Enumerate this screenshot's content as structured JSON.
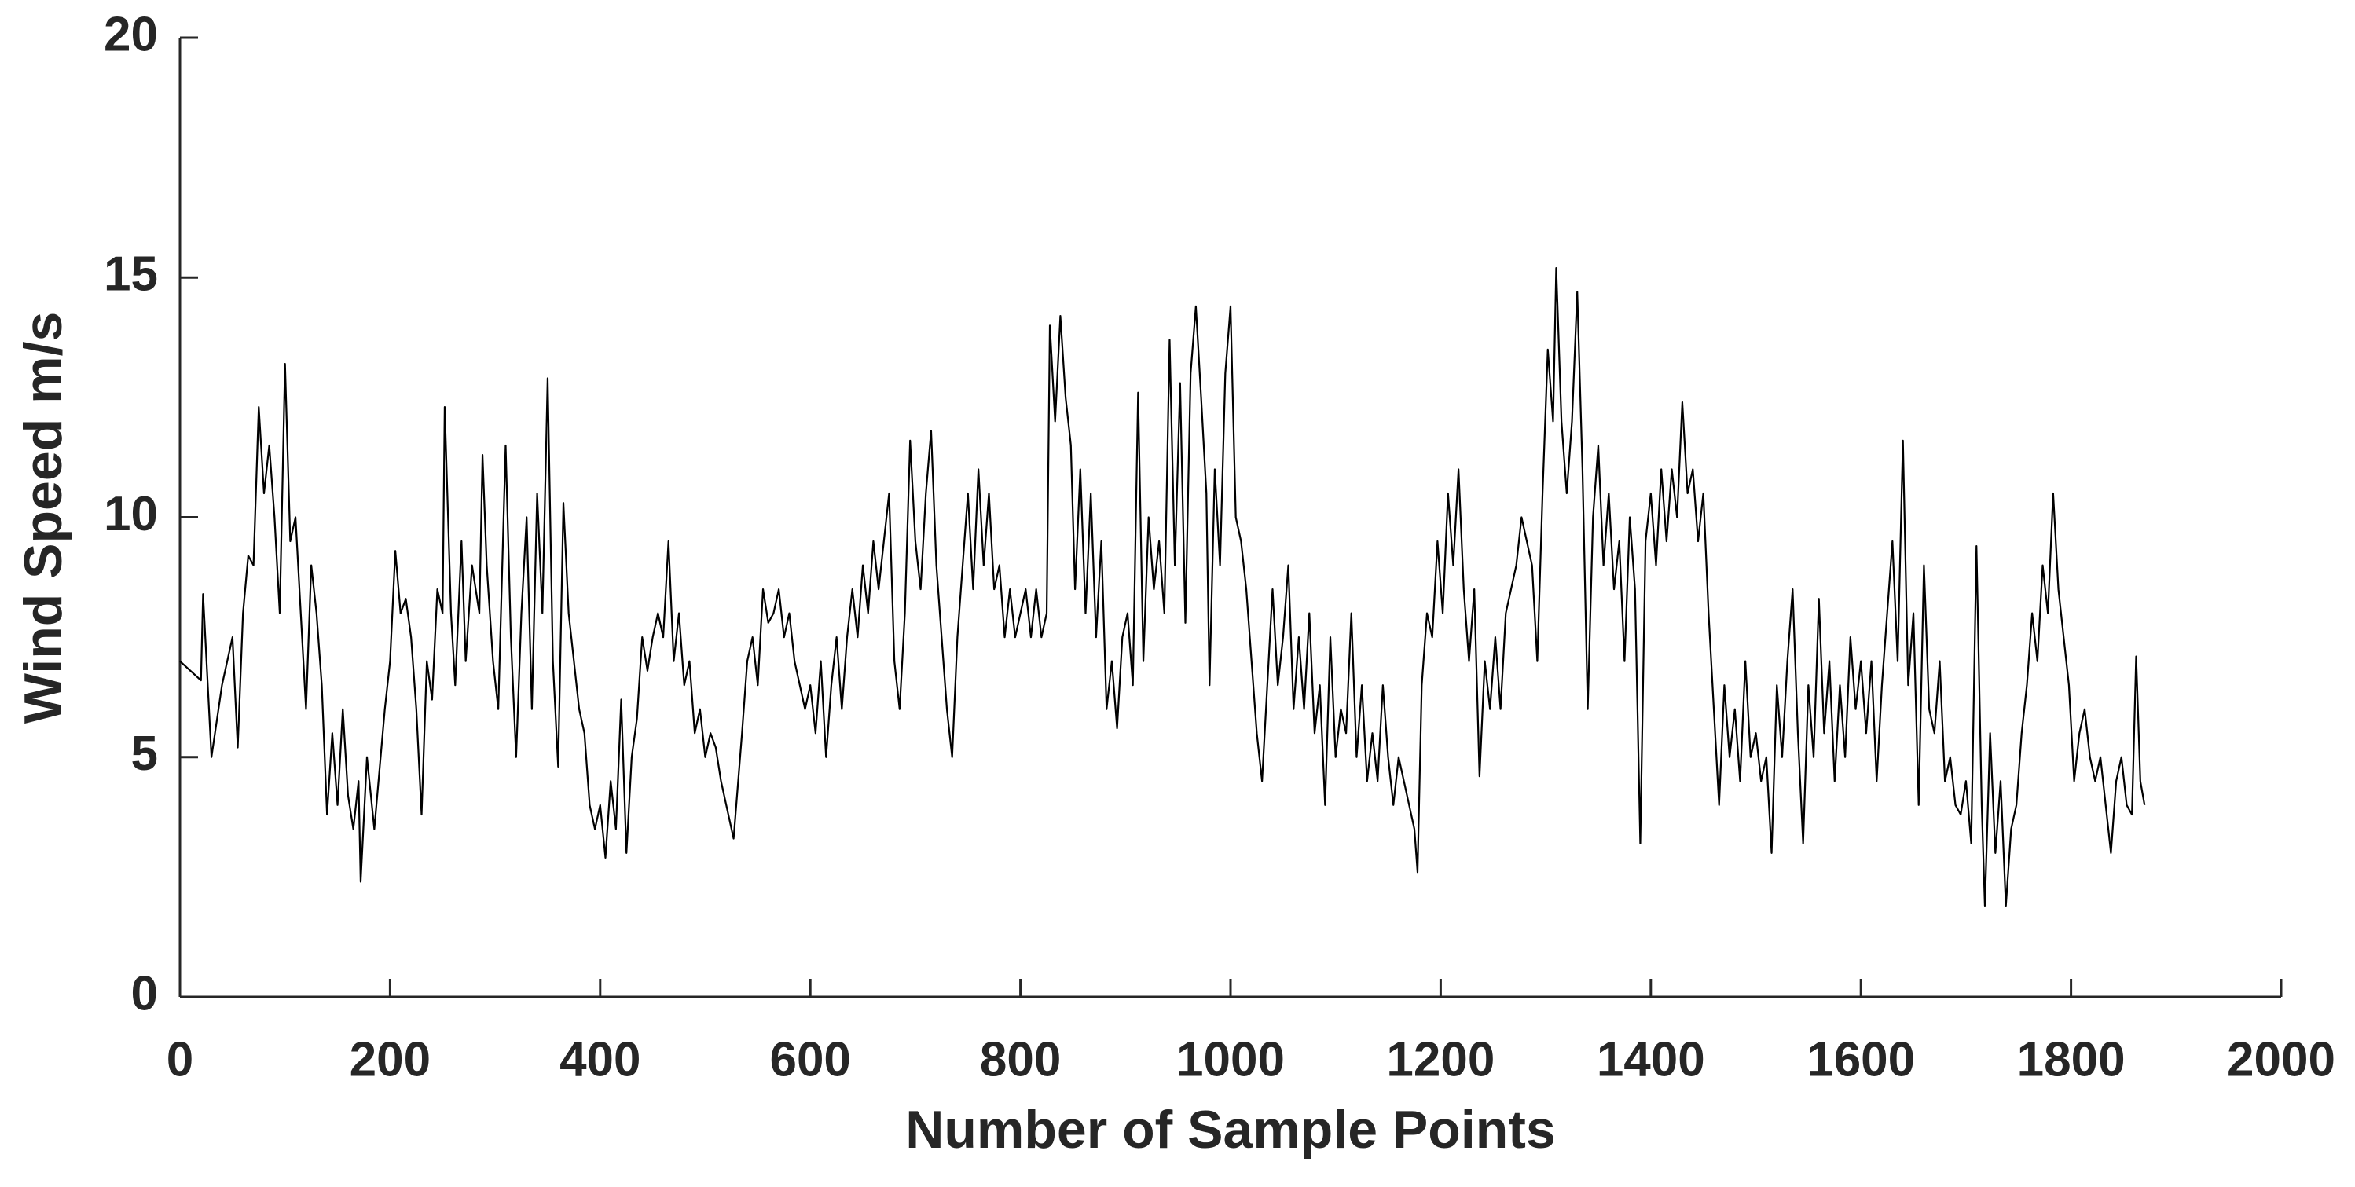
{
  "chart_data": {
    "type": "line",
    "xlabel": "Number of Sample Points",
    "ylabel": "Wind Speed  m/s",
    "color": "#000000",
    "xlim": [
      0,
      2000
    ],
    "xticks": [
      0,
      200,
      400,
      600,
      800,
      1000,
      1200,
      1400,
      1600,
      1800,
      2000
    ],
    "ylim": [
      0,
      20
    ],
    "yticks": [
      0,
      5,
      10,
      15,
      20
    ],
    "grid": false,
    "x": [
      0,
      20,
      22,
      30,
      40,
      50,
      55,
      60,
      65,
      70,
      75,
      80,
      85,
      90,
      95,
      100,
      105,
      110,
      115,
      120,
      125,
      130,
      135,
      140,
      145,
      150,
      155,
      160,
      165,
      170,
      172,
      178,
      185,
      195,
      200,
      205,
      210,
      215,
      220,
      225,
      230,
      235,
      240,
      245,
      250,
      252,
      258,
      262,
      268,
      272,
      278,
      285,
      288,
      292,
      298,
      303,
      310,
      315,
      320,
      325,
      330,
      335,
      340,
      345,
      350,
      355,
      360,
      365,
      370,
      375,
      380,
      385,
      390,
      395,
      400,
      405,
      410,
      415,
      420,
      425,
      430,
      435,
      440,
      445,
      450,
      455,
      460,
      465,
      470,
      475,
      480,
      485,
      490,
      495,
      500,
      505,
      510,
      515,
      520,
      527,
      535,
      540,
      545,
      550,
      555,
      560,
      565,
      570,
      575,
      580,
      585,
      590,
      595,
      600,
      605,
      610,
      615,
      620,
      625,
      630,
      635,
      640,
      645,
      650,
      655,
      660,
      665,
      670,
      675,
      680,
      685,
      690,
      695,
      700,
      705,
      710,
      715,
      720,
      725,
      730,
      735,
      740,
      745,
      750,
      755,
      760,
      765,
      770,
      775,
      780,
      785,
      790,
      795,
      800,
      805,
      810,
      815,
      820,
      825,
      828,
      833,
      838,
      843,
      848,
      852,
      857,
      862,
      867,
      872,
      877,
      882,
      887,
      892,
      897,
      902,
      907,
      912,
      917,
      922,
      927,
      932,
      937,
      942,
      947,
      952,
      957,
      962,
      967,
      972,
      977,
      980,
      985,
      990,
      995,
      1000,
      1005,
      1010,
      1015,
      1020,
      1025,
      1030,
      1035,
      1040,
      1045,
      1050,
      1055,
      1060,
      1065,
      1070,
      1075,
      1080,
      1085,
      1090,
      1095,
      1100,
      1105,
      1110,
      1115,
      1120,
      1125,
      1130,
      1135,
      1140,
      1145,
      1150,
      1155,
      1160,
      1165,
      1170,
      1175,
      1178,
      1182,
      1187,
      1192,
      1197,
      1202,
      1207,
      1212,
      1217,
      1222,
      1227,
      1232,
      1237,
      1242,
      1247,
      1252,
      1257,
      1262,
      1267,
      1272,
      1277,
      1282,
      1287,
      1292,
      1297,
      1302,
      1307,
      1310,
      1315,
      1320,
      1325,
      1330,
      1335,
      1340,
      1345,
      1350,
      1355,
      1360,
      1365,
      1370,
      1375,
      1380,
      1385,
      1390,
      1395,
      1400,
      1405,
      1410,
      1415,
      1420,
      1425,
      1430,
      1435,
      1440,
      1445,
      1450,
      1455,
      1460,
      1465,
      1470,
      1475,
      1480,
      1485,
      1490,
      1495,
      1500,
      1505,
      1510,
      1515,
      1520,
      1525,
      1530,
      1535,
      1540,
      1545,
      1550,
      1555,
      1560,
      1565,
      1570,
      1575,
      1580,
      1585,
      1590,
      1595,
      1600,
      1605,
      1610,
      1615,
      1620,
      1625,
      1630,
      1635,
      1640,
      1645,
      1650,
      1655,
      1660,
      1665,
      1670,
      1675,
      1680,
      1685,
      1690,
      1695,
      1700,
      1705,
      1710,
      1715,
      1718,
      1723,
      1728,
      1733,
      1738,
      1743,
      1748,
      1753,
      1758,
      1763,
      1768,
      1773,
      1778,
      1783,
      1788,
      1793,
      1798,
      1803,
      1808,
      1813,
      1818,
      1823,
      1828,
      1833,
      1838,
      1843,
      1848,
      1853,
      1858,
      1862,
      1866,
      1870
    ],
    "values": [
      7.0,
      6.6,
      8.4,
      5.0,
      6.5,
      7.5,
      5.2,
      8.0,
      9.2,
      9.0,
      12.3,
      10.5,
      11.5,
      10.0,
      8.0,
      13.2,
      9.5,
      10.0,
      8.0,
      6.0,
      9.0,
      8.0,
      6.5,
      3.8,
      5.5,
      4.0,
      6.0,
      4.2,
      3.5,
      4.5,
      2.4,
      5.0,
      3.5,
      6.0,
      7.0,
      9.3,
      8.0,
      8.3,
      7.5,
      6.0,
      3.8,
      7.0,
      6.2,
      8.5,
      8.0,
      12.3,
      8.0,
      6.5,
      9.5,
      7.0,
      9.0,
      8.0,
      11.3,
      9.0,
      7.0,
      6.0,
      11.5,
      7.5,
      5.0,
      8.0,
      10.0,
      6.0,
      10.5,
      8.0,
      12.9,
      7.0,
      4.8,
      10.3,
      8.0,
      7.0,
      6.0,
      5.5,
      4.0,
      3.5,
      4.0,
      2.9,
      4.5,
      3.5,
      6.2,
      3.0,
      5.0,
      5.8,
      7.5,
      6.8,
      7.5,
      8.0,
      7.5,
      9.5,
      7.0,
      8.0,
      6.5,
      7.0,
      5.5,
      6.0,
      5.0,
      5.5,
      5.2,
      4.5,
      4.0,
      3.3,
      5.5,
      7.0,
      7.5,
      6.5,
      8.5,
      7.8,
      8.0,
      8.5,
      7.5,
      8.0,
      7.0,
      6.5,
      6.0,
      6.5,
      5.5,
      7.0,
      5.0,
      6.5,
      7.5,
      6.0,
      7.5,
      8.5,
      7.5,
      9.0,
      8.0,
      9.5,
      8.5,
      9.5,
      10.5,
      7.0,
      6.0,
      8.0,
      11.6,
      9.5,
      8.5,
      10.5,
      11.8,
      9.0,
      7.5,
      6.0,
      5.0,
      7.5,
      9.0,
      10.5,
      8.5,
      11.0,
      9.0,
      10.5,
      8.5,
      9.0,
      7.5,
      8.5,
      7.5,
      8.0,
      8.5,
      7.5,
      8.5,
      7.5,
      8.0,
      14.0,
      12.0,
      14.2,
      12.5,
      11.5,
      8.5,
      11.0,
      8.0,
      10.5,
      7.5,
      9.5,
      6.0,
      7.0,
      5.6,
      7.5,
      8.0,
      6.5,
      12.6,
      7.0,
      10.0,
      8.5,
      9.5,
      8.0,
      13.7,
      9.0,
      12.8,
      7.8,
      13.0,
      14.4,
      12.5,
      10.5,
      6.5,
      11.0,
      9.0,
      13.0,
      14.4,
      10.0,
      9.5,
      8.5,
      7.0,
      5.5,
      4.5,
      6.5,
      8.5,
      6.5,
      7.5,
      9.0,
      6.0,
      7.5,
      6.0,
      8.0,
      5.5,
      6.5,
      4.0,
      7.5,
      5.0,
      6.0,
      5.5,
      8.0,
      5.0,
      6.5,
      4.5,
      5.5,
      4.5,
      6.5,
      5.0,
      4.0,
      5.0,
      4.5,
      4.0,
      3.5,
      2.6,
      6.5,
      8.0,
      7.5,
      9.5,
      8.0,
      10.5,
      9.0,
      11.0,
      8.5,
      7.0,
      8.5,
      4.6,
      7.0,
      6.0,
      7.5,
      6.0,
      8.0,
      8.5,
      9.0,
      10.0,
      9.5,
      9.0,
      7.0,
      10.5,
      13.5,
      12.0,
      15.2,
      12.0,
      10.5,
      12.0,
      14.7,
      11.0,
      6.0,
      10.0,
      11.5,
      9.0,
      10.5,
      8.5,
      9.5,
      7.0,
      10.0,
      8.5,
      3.2,
      9.5,
      10.5,
      9.0,
      11.0,
      9.5,
      11.0,
      10.0,
      12.4,
      10.5,
      11.0,
      9.5,
      10.5,
      8.0,
      6.0,
      4.0,
      6.5,
      5.0,
      6.0,
      4.5,
      7.0,
      5.0,
      5.5,
      4.5,
      5.0,
      3.0,
      6.5,
      5.0,
      7.0,
      8.5,
      5.5,
      3.2,
      6.5,
      5.0,
      8.3,
      5.5,
      7.0,
      4.5,
      6.5,
      5.0,
      7.5,
      6.0,
      7.0,
      5.5,
      7.0,
      4.5,
      6.5,
      8.0,
      9.5,
      7.0,
      11.6,
      6.5,
      8.0,
      4.0,
      9.0,
      6.0,
      5.5,
      7.0,
      4.5,
      5.0,
      4.0,
      3.8,
      4.5,
      3.2,
      9.4,
      4.0,
      1.9,
      5.5,
      3.0,
      4.5,
      1.9,
      3.5,
      4.0,
      5.5,
      6.5,
      8.0,
      7.0,
      9.0,
      8.0,
      10.5,
      8.5,
      7.5,
      6.5,
      4.5,
      5.5,
      6.0,
      5.0,
      4.5,
      5.0,
      4.0,
      3.0,
      4.5,
      5.0,
      4.0,
      3.8,
      7.1,
      4.5,
      4.0
    ]
  }
}
